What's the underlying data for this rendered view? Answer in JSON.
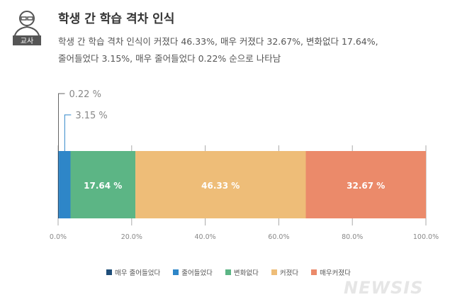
{
  "header": {
    "badge": "교사",
    "title": "학생 간 학습 격차 인식",
    "subtitle_line1": "학생 간 학습 격차 인식이 커졌다 46.33%, 매우 커졌다 32.67%, 변화없다 17.64%,",
    "subtitle_line2": "줄어들었다 3.15%, 매우 줄어들었다 0.22% 순으로 나타남"
  },
  "chart_data": {
    "type": "bar",
    "orientation": "horizontal",
    "stacked": true,
    "series": [
      {
        "name": "매우 줄어들었다",
        "value": 0.22,
        "label": "0.22",
        "color": "#1f4e79"
      },
      {
        "name": "줄어들었다",
        "value": 3.15,
        "label": "3.15",
        "color": "#2e86c8"
      },
      {
        "name": "변화없다",
        "value": 17.64,
        "label": "17.64",
        "color": "#5cb585"
      },
      {
        "name": "커졌다",
        "value": 46.33,
        "label": "46.33",
        "color": "#eebd78"
      },
      {
        "name": "매우커졌다",
        "value": 32.67,
        "label": "32.67",
        "color": "#eb8a6a"
      }
    ],
    "unit": "%",
    "xlim": [
      0,
      100
    ],
    "xticks": [
      "0.0%",
      "20.0%",
      "40.0%",
      "60.0%",
      "80.0%",
      "100.0%"
    ],
    "legend": "bottom"
  },
  "watermark": "NEWSIS"
}
